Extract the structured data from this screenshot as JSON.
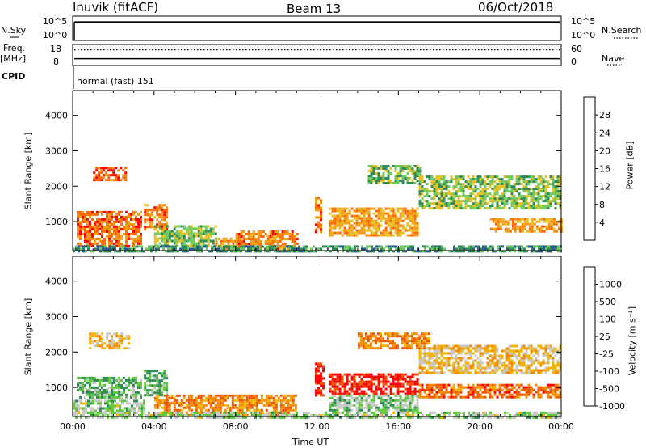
{
  "header": {
    "station": "Inuvik (fitACF)",
    "beam": "Beam 13",
    "date": "06/Oct/2018"
  },
  "top_panels": {
    "nsky": {
      "label": "N.Sky",
      "ticks": [
        "10^5",
        "10^0"
      ],
      "right_ticks": [
        "10^5",
        "10^0"
      ],
      "right_label": "N.Search",
      "line_level": 0.75
    },
    "freq": {
      "label": "Freq.",
      "unit": "[MHz]",
      "ticks": [
        "18",
        "8"
      ],
      "right_ticks": [
        "60",
        "0"
      ],
      "right_label": "Nave",
      "freq_level": 0.32,
      "nave_level": 0.75
    },
    "cpid": {
      "label": "CPID",
      "value": "normal (fast) 151"
    }
  },
  "chart_data": [
    {
      "type": "heatmap",
      "name": "power",
      "ylabel": "Slant Range [km]",
      "ylim": [
        180,
        4700
      ],
      "yticks": [
        1000,
        2000,
        3000,
        4000
      ],
      "xlim": [
        0,
        24
      ],
      "xticks": [
        "00:00",
        "04:00",
        "08:00",
        "12:00",
        "16:00",
        "20:00",
        "00:00"
      ],
      "colorbar_label": "Power [dB]",
      "colorbar_ticks": [
        "28",
        "24",
        "20",
        "16",
        "12",
        "8",
        "4"
      ],
      "colorbar_colors": [
        "#ff0000",
        "#ff6a00",
        "#f39c12",
        "#e8c020",
        "#6ec85c",
        "#2e8b57",
        "#245a96",
        "#0000ff"
      ],
      "regions": [
        {
          "x0": 0.2,
          "x1": 3.3,
          "y0": 300,
          "y1": 1300,
          "level": 0.85
        },
        {
          "x0": 1.0,
          "x1": 2.6,
          "y0": 2200,
          "y1": 2550,
          "level": 0.9
        },
        {
          "x0": 3.5,
          "x1": 4.6,
          "y0": 800,
          "y1": 1500,
          "level": 0.8
        },
        {
          "x0": 4.0,
          "x1": 7.0,
          "y0": 350,
          "y1": 900,
          "level": 0.45
        },
        {
          "x0": 7.0,
          "x1": 8.2,
          "y0": 250,
          "y1": 550,
          "level": 0.7
        },
        {
          "x0": 8.0,
          "x1": 11.0,
          "y0": 250,
          "y1": 750,
          "level": 0.8
        },
        {
          "x0": 11.9,
          "x1": 12.2,
          "y0": 700,
          "y1": 1700,
          "level": 0.85
        },
        {
          "x0": 12.6,
          "x1": 17.0,
          "y0": 600,
          "y1": 1400,
          "level": 0.7
        },
        {
          "x0": 14.5,
          "x1": 17.0,
          "y0": 2100,
          "y1": 2600,
          "level": 0.4
        },
        {
          "x0": 17.0,
          "x1": 24.0,
          "y0": 1400,
          "y1": 2300,
          "level": 0.45
        },
        {
          "x0": 20.5,
          "x1": 24.0,
          "y0": 700,
          "y1": 1100,
          "level": 0.75
        },
        {
          "x0": 0.0,
          "x1": 24.0,
          "y0": 180,
          "y1": 330,
          "level": 0.3
        }
      ]
    },
    {
      "type": "heatmap",
      "name": "velocity",
      "ylabel": "Slant Range [km]",
      "ylim": [
        180,
        4700
      ],
      "yticks": [
        1000,
        2000,
        3000,
        4000
      ],
      "xlim": [
        0,
        24
      ],
      "xticks": [
        "00:00",
        "04:00",
        "08:00",
        "12:00",
        "16:00",
        "20:00",
        "00:00"
      ],
      "xlabel": "Time UT",
      "colorbar_label": "Velocity [m s⁻¹]",
      "colorbar_ticks": [
        "1000",
        "500",
        "100",
        "25",
        "-25",
        "-100",
        "-500",
        "-1000"
      ],
      "colorbar_colors": [
        "#1f3fb0",
        "#2e8b57",
        "#5cc83a",
        "#c8c8c8",
        "#f3b300",
        "#f38a00",
        "#ee5500",
        "#ff0000"
      ],
      "regions": [
        {
          "x0": 0.2,
          "x1": 3.3,
          "y0": 700,
          "y1": 1300,
          "level": 0.75
        },
        {
          "x0": 0.8,
          "x1": 2.8,
          "y0": 2100,
          "y1": 2550,
          "level": 0.45
        },
        {
          "x0": 3.5,
          "x1": 4.6,
          "y0": 800,
          "y1": 1500,
          "level": 0.75
        },
        {
          "x0": 0.0,
          "x1": 3.5,
          "y0": 300,
          "y1": 650,
          "level": 0.65
        },
        {
          "x0": 4.0,
          "x1": 11.0,
          "y0": 250,
          "y1": 800,
          "level": 0.25
        },
        {
          "x0": 11.9,
          "x1": 12.3,
          "y0": 800,
          "y1": 1700,
          "level": 0.0
        },
        {
          "x0": 12.6,
          "x1": 17.0,
          "y0": 800,
          "y1": 1400,
          "level": 0.0
        },
        {
          "x0": 12.6,
          "x1": 17.0,
          "y0": 350,
          "y1": 800,
          "level": 0.7
        },
        {
          "x0": 14.0,
          "x1": 17.5,
          "y0": 2100,
          "y1": 2550,
          "level": 0.25
        },
        {
          "x0": 17.0,
          "x1": 24.0,
          "y0": 1400,
          "y1": 2200,
          "level": 0.45
        },
        {
          "x0": 17.0,
          "x1": 24.0,
          "y0": 700,
          "y1": 1100,
          "level": 0.2
        },
        {
          "x0": 0.0,
          "x1": 24.0,
          "y0": 180,
          "y1": 320,
          "level": 0.65
        }
      ]
    }
  ]
}
